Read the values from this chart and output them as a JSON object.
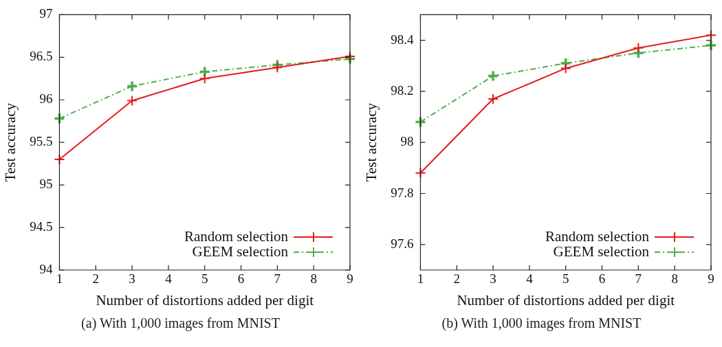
{
  "chart_data": [
    {
      "type": "line",
      "xlabel": "Number of distortions added per digit",
      "ylabel": "Test accuracy",
      "x": [
        1,
        3,
        5,
        7,
        9
      ],
      "xlim": [
        1,
        9
      ],
      "xticks": [
        1,
        2,
        3,
        4,
        5,
        6,
        7,
        8,
        9
      ],
      "ylim": [
        94,
        97
      ],
      "yticks": [
        94,
        {
          "value": 94.5,
          "label": "94.5"
        },
        95,
        {
          "value": 95.5,
          "label": "95.5"
        },
        96,
        {
          "value": 96.5,
          "label": "96.5"
        },
        97
      ],
      "grid": false,
      "legend": "bottom right",
      "marker": "cross",
      "annotations": [
        "(a) With 1,000 images from MNIST"
      ],
      "series": [
        {
          "name": "Random selection",
          "color": "#e41a1c",
          "line_style": "solid",
          "values": [
            95.3,
            95.99,
            96.25,
            96.38,
            96.51
          ]
        },
        {
          "name": "GEEM selection",
          "color": "#4daf4a",
          "line_style": "dashdot",
          "values": [
            95.78,
            96.16,
            96.33,
            96.41,
            96.48
          ]
        }
      ]
    },
    {
      "type": "line",
      "xlabel": "Number of distortions added per digit",
      "ylabel": "Test accuracy",
      "x": [
        1,
        3,
        5,
        7,
        9
      ],
      "xlim": [
        1,
        9
      ],
      "xticks": [
        1,
        2,
        3,
        4,
        5,
        6,
        7,
        8,
        9
      ],
      "ylim": [
        97.5,
        98.5
      ],
      "yticks": [
        {
          "value": 97.6,
          "label": "97.6"
        },
        {
          "value": 97.8,
          "label": "97.8"
        },
        98,
        {
          "value": 98.2,
          "label": "98.2"
        },
        {
          "value": 98.4,
          "label": "98.4"
        }
      ],
      "grid": false,
      "legend": "bottom right",
      "marker": "cross",
      "annotations": [
        "(b) With 1,000 images from MNIST"
      ],
      "series": [
        {
          "name": "Random selection",
          "color": "#e41a1c",
          "line_style": "solid",
          "values": [
            97.88,
            98.17,
            98.29,
            98.37,
            98.42
          ]
        },
        {
          "name": "GEEM selection",
          "color": "#4daf4a",
          "line_style": "dashdot",
          "values": [
            98.08,
            98.26,
            98.31,
            98.35,
            98.38
          ]
        }
      ]
    }
  ]
}
